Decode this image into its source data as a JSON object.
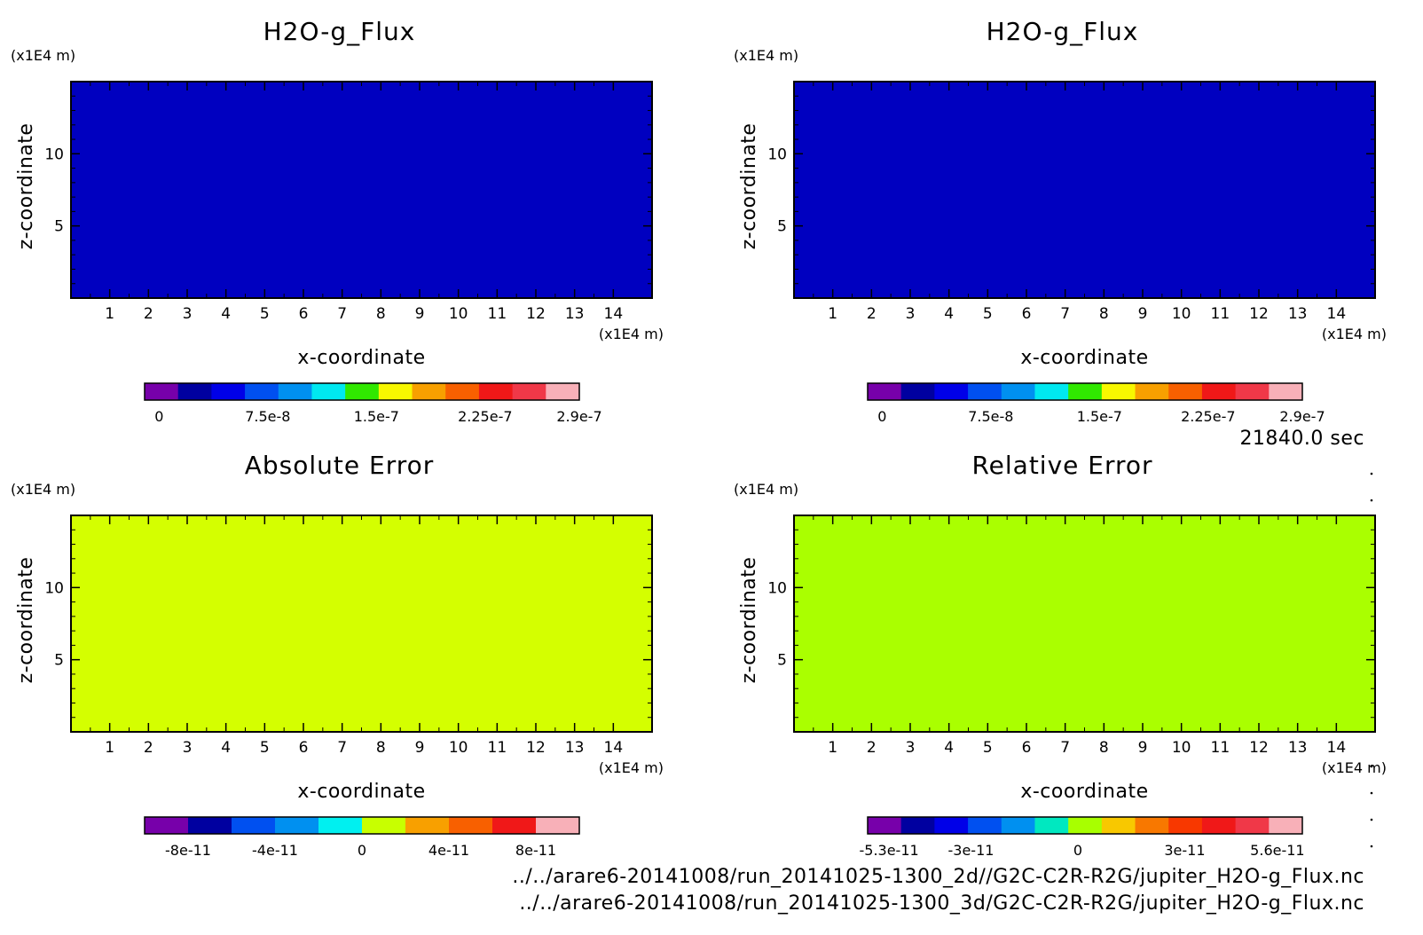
{
  "time_label": "21840.0 sec",
  "file_paths": [
    "../../arare6-20141008/run_20141025-1300_2d//G2C-C2R-R2G/jupiter_H2O-g_Flux.nc",
    "../../arare6-20141008/run_20141025-1300_3d/G2C-C2R-R2G/jupiter_H2O-g_Flux.nc"
  ],
  "chart_data": [
    {
      "type": "heatmap",
      "title": "H2O-g_Flux",
      "xlabel": "x-coordinate",
      "ylabel": "z-coordinate",
      "x_unit": "(x1E4 m)",
      "y_unit": "(x1E4 m)",
      "xlim": [
        0,
        15
      ],
      "ylim": [
        0,
        15
      ],
      "x_ticks": [
        1,
        2,
        3,
        4,
        5,
        6,
        7,
        8,
        9,
        10,
        11,
        12,
        13,
        14
      ],
      "y_ticks": [
        5,
        10
      ],
      "fill_color": "#0000c0",
      "colorbar": {
        "colors": [
          "#7700aa",
          "#0000a0",
          "#0000e8",
          "#0050f0",
          "#0090f0",
          "#00e8f0",
          "#30e800",
          "#f8f800",
          "#f8a000",
          "#f86000",
          "#f01818",
          "#f03848",
          "#f8b0b8"
        ],
        "tick_labels": [
          "0",
          "7.5e-8",
          "1.5e-7",
          "2.25e-7",
          "2.9e-7"
        ],
        "tick_values": [
          0,
          7.5e-08,
          1.5e-07,
          2.25e-07,
          2.9e-07
        ],
        "range": [
          -1e-08,
          2.9e-07
        ]
      }
    },
    {
      "type": "heatmap",
      "title": "H2O-g_Flux",
      "xlabel": "x-coordinate",
      "ylabel": "z-coordinate",
      "x_unit": "(x1E4 m)",
      "y_unit": "(x1E4 m)",
      "xlim": [
        0,
        15
      ],
      "ylim": [
        0,
        15
      ],
      "x_ticks": [
        1,
        2,
        3,
        4,
        5,
        6,
        7,
        8,
        9,
        10,
        11,
        12,
        13,
        14
      ],
      "y_ticks": [
        5,
        10
      ],
      "fill_color": "#0000c0",
      "colorbar": {
        "colors": [
          "#7700aa",
          "#0000a0",
          "#0000e8",
          "#0050f0",
          "#0090f0",
          "#00e8f0",
          "#30e800",
          "#f8f800",
          "#f8a000",
          "#f86000",
          "#f01818",
          "#f03848",
          "#f8b0b8"
        ],
        "tick_labels": [
          "0",
          "7.5e-8",
          "1.5e-7",
          "2.25e-7",
          "2.9e-7"
        ],
        "tick_values": [
          0,
          7.5e-08,
          1.5e-07,
          2.25e-07,
          2.9e-07
        ],
        "range": [
          -1e-08,
          2.9e-07
        ]
      }
    },
    {
      "type": "heatmap",
      "title": "Absolute Error",
      "xlabel": "x-coordinate",
      "ylabel": "z-coordinate",
      "x_unit": "(x1E4 m)",
      "y_unit": "(x1E4 m)",
      "xlim": [
        0,
        15
      ],
      "ylim": [
        0,
        15
      ],
      "x_ticks": [
        1,
        2,
        3,
        4,
        5,
        6,
        7,
        8,
        9,
        10,
        11,
        12,
        13,
        14
      ],
      "y_ticks": [
        5,
        10
      ],
      "fill_color": "#d4ff00",
      "colorbar": {
        "colors": [
          "#7700aa",
          "#0000a0",
          "#0050f0",
          "#0090f0",
          "#00f0f0",
          "#c8ff00",
          "#f8a000",
          "#f86000",
          "#f01818",
          "#f8b0b8"
        ],
        "tick_labels": [
          "-8e-11",
          "-4e-11",
          "0",
          "4e-11",
          "8e-11"
        ],
        "tick_values": [
          -8e-11,
          -4e-11,
          0,
          4e-11,
          8e-11
        ],
        "range": [
          -1e-10,
          1e-10
        ]
      }
    },
    {
      "type": "heatmap",
      "title": "Relative Error",
      "xlabel": "x-coordinate",
      "ylabel": "z-coordinate",
      "x_unit": "(x1E4 m)",
      "y_unit": "(x1E4 m)",
      "xlim": [
        0,
        15
      ],
      "ylim": [
        0,
        15
      ],
      "x_ticks": [
        1,
        2,
        3,
        4,
        5,
        6,
        7,
        8,
        9,
        10,
        11,
        12,
        13,
        14
      ],
      "y_ticks": [
        5,
        10
      ],
      "fill_color": "#aaff00",
      "colorbar": {
        "colors": [
          "#7700aa",
          "#0000a0",
          "#0000e8",
          "#0050f0",
          "#0090f0",
          "#00e8c0",
          "#a8ff00",
          "#f8c800",
          "#f87800",
          "#f83800",
          "#f01818",
          "#f03848",
          "#f8b0b8"
        ],
        "tick_labels": [
          "-5.3e-11",
          "-3e-11",
          "0",
          "3e-11",
          "5.6e-11"
        ],
        "tick_values": [
          -5.3e-11,
          -3e-11,
          0,
          3e-11,
          5.6e-11
        ],
        "range": [
          -5.9e-11,
          6.3e-11
        ]
      }
    }
  ]
}
